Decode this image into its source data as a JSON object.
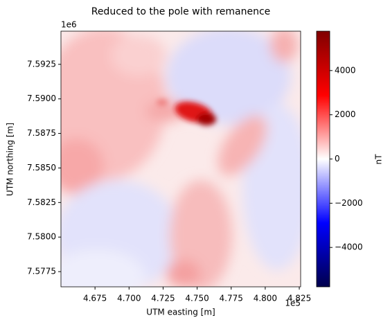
{
  "chart_data": {
    "type": "heatmap",
    "title": "Reduced to the pole with remanence",
    "xlabel": "UTM easting [m]",
    "ylabel": "UTM northing [m]",
    "x_offset_label": "1e5",
    "y_offset_label": "1e6",
    "xlim": [
      465000,
      482600
    ],
    "ylim": [
      7576400,
      7594900
    ],
    "xticks": [
      {
        "value": 467500,
        "label": "4.675"
      },
      {
        "value": 470000,
        "label": "4.700"
      },
      {
        "value": 472500,
        "label": "4.725"
      },
      {
        "value": 475000,
        "label": "4.750"
      },
      {
        "value": 477500,
        "label": "4.775"
      },
      {
        "value": 480000,
        "label": "4.800"
      },
      {
        "value": 482500,
        "label": "4.825"
      }
    ],
    "yticks": [
      {
        "value": 7577500,
        "label": "7.5775"
      },
      {
        "value": 7580000,
        "label": "7.5800"
      },
      {
        "value": 7582500,
        "label": "7.5825"
      },
      {
        "value": 7585000,
        "label": "7.5850"
      },
      {
        "value": 7587500,
        "label": "7.5875"
      },
      {
        "value": 7590000,
        "label": "7.5900"
      },
      {
        "value": 7592500,
        "label": "7.5925"
      }
    ],
    "colorbar": {
      "label": "nT",
      "colormap": "seismic",
      "lim": [
        -5780,
        5780
      ],
      "ticks": [
        {
          "value": -4000,
          "label": "−4000"
        },
        {
          "value": -2000,
          "label": "−2000"
        },
        0,
        2000,
        4000
      ]
    }
  }
}
